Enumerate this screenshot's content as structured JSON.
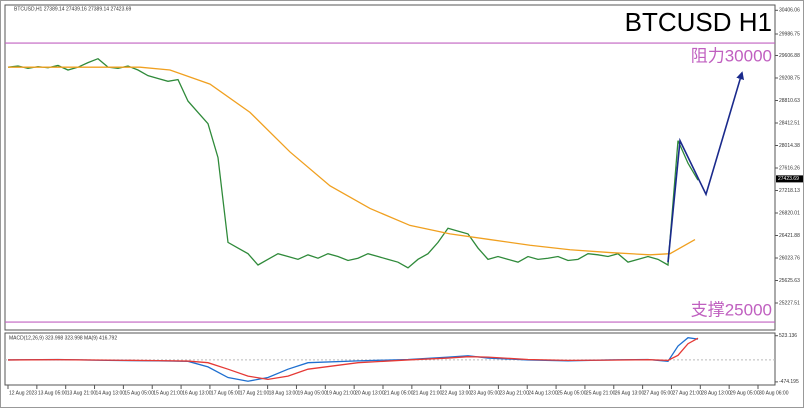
{
  "header": "BTCUSD,H1  27389.14 27439.16 27389.14 27423.69",
  "chart_data": [
    {
      "type": "line",
      "title": "BTCUSD H1",
      "xlim": [
        0,
        76.7
      ],
      "ylim": [
        24750,
        30500
      ],
      "yticks": [
        30406.06,
        29986.75,
        29606.88,
        29208.75,
        28810.63,
        28412.51,
        28014.38,
        27616.26,
        27218.13,
        26820.01,
        26421.88,
        26023.76,
        25625.63,
        25227.51
      ],
      "time_labels": [
        "12 Aug 2023",
        "13 Aug 05:00",
        "13 Aug 21:00",
        "14 Aug 13:00",
        "15 Aug 05:00",
        "15 Aug 21:00",
        "16 Aug 13:00",
        "17 Aug 05:00",
        "17 Aug 21:00",
        "18 Aug 13:00",
        "19 Aug 05:00",
        "19 Aug 21:00",
        "20 Aug 13:00",
        "21 Aug 05:00",
        "21 Aug 21:00",
        "22 Aug 13:00",
        "23 Aug 05:00",
        "23 Aug 21:00",
        "24 Aug 13:00",
        "25 Aug 05:00",
        "25 Aug 21:00",
        "26 Aug 13:00",
        "27 Aug 05:00",
        "27 Aug 21:00",
        "28 Aug 13:00",
        "29 Aug 05:00",
        "30 Aug 06:00"
      ],
      "series": [
        {
          "color": "#2f8a3a",
          "values": [
            29400,
            29420,
            29380,
            29410,
            29390,
            29430,
            29350,
            29400,
            29480,
            29550,
            29400,
            29380,
            29420,
            29350,
            29250,
            29200,
            29150,
            29180,
            28800,
            28600,
            28400,
            27800,
            26300,
            26200,
            26100,
            25900,
            26000,
            26100,
            26050,
            26000,
            26080,
            26020,
            26100,
            26050,
            25980,
            26020,
            26100,
            26050,
            26000,
            25950,
            25850,
            26000,
            26100,
            26300,
            26550,
            26500,
            26450,
            26200,
            26000,
            26050,
            26000,
            25950,
            26050,
            26000,
            26020,
            26050,
            25980,
            26000,
            26100,
            26080,
            26050,
            26100,
            25950,
            26000,
            26050,
            26000,
            25900,
            28100,
            27700,
            27400
          ]
        },
        {
          "color": "#f0a020",
          "x": [
            0,
            13.2,
            16.2,
            20.2,
            24.2,
            28.2,
            32.2,
            36.2,
            40.2,
            44.2,
            48.2,
            52.2,
            56.2,
            60.2,
            64.2,
            66.2,
            68.7
          ],
          "values": [
            29400,
            29400,
            29350,
            29100,
            28600,
            27900,
            27300,
            26900,
            26600,
            26450,
            26350,
            26250,
            26170,
            26120,
            26080,
            26100,
            26350
          ]
        }
      ],
      "arrow": {
        "color": "#1a2a8c",
        "x": [
          66,
          67.2,
          69.8,
          73.4
        ],
        "y": [
          25950,
          28100,
          27150,
          29300
        ]
      },
      "levels": [
        29827,
        24890
      ],
      "level_color": "#c060c0",
      "annotations": [
        {
          "text": "阻力30000",
          "value": 29827
        },
        {
          "text": "支撑25000",
          "value": 24890
        }
      ],
      "last_price": 27423.69
    },
    {
      "type": "line",
      "title": "MACD(12,26,9) 323.998 323.998 MA(9) 416.792",
      "xlim": [
        0,
        76.7
      ],
      "ylim": [
        -520,
        560
      ],
      "yticks": [
        523.136,
        -474.195
      ],
      "x": [
        0,
        5,
        10,
        15,
        18,
        20,
        22,
        24,
        26,
        28,
        30,
        35,
        40,
        44,
        46,
        48,
        52,
        56,
        60,
        64,
        66,
        67,
        68,
        69
      ],
      "series": [
        {
          "color": "#1e6fd0",
          "values": [
            0,
            10,
            -10,
            -20,
            -30,
            -150,
            -380,
            -460,
            -380,
            -200,
            -60,
            -20,
            10,
            60,
            90,
            40,
            0,
            -20,
            0,
            10,
            -30,
            300,
            480,
            450
          ]
        },
        {
          "color": "#e53935",
          "values": [
            0,
            5,
            -5,
            -15,
            -25,
            -60,
            -200,
            -350,
            -420,
            -350,
            -200,
            -60,
            0,
            40,
            70,
            60,
            10,
            -10,
            -5,
            5,
            -10,
            100,
            350,
            470
          ]
        }
      ]
    }
  ]
}
